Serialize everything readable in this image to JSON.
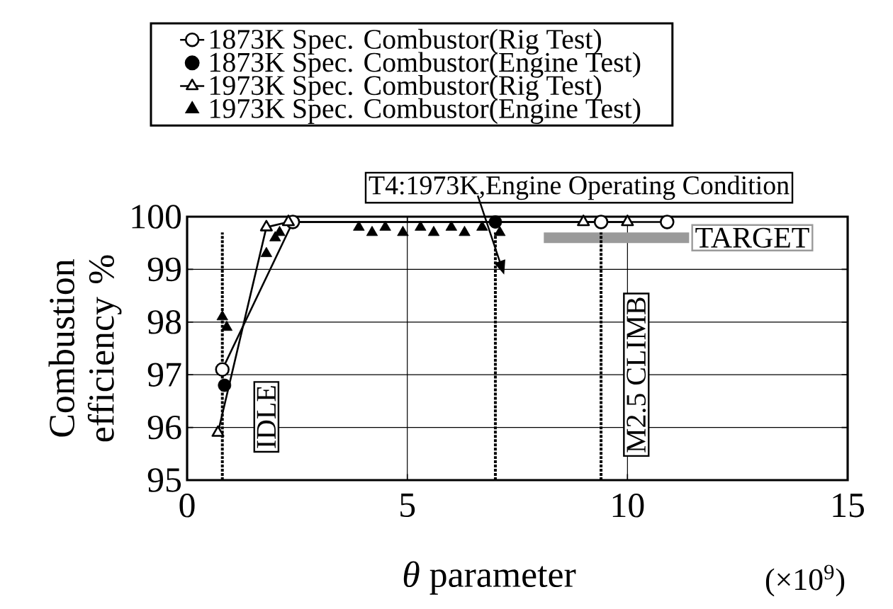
{
  "chart_data": {
    "type": "line",
    "xlabel": "*θ* parameter",
    "ylabel": "Combustion efficiency %",
    "xlim": [
      0,
      15
    ],
    "ylim": [
      95,
      100
    ],
    "xticks": [
      0,
      5,
      10,
      15
    ],
    "yticks": [
      95,
      96,
      97,
      98,
      99,
      100
    ],
    "grid": true,
    "legend": "top",
    "series": [
      {
        "name": "1873K Spec. Combustor(Rig Test)",
        "marker": "circle",
        "color": "#000000",
        "x": [
          0.8,
          2.4,
          9.4,
          10.9
        ],
        "values": [
          97.1,
          99.9,
          99.9,
          99.9
        ]
      },
      {
        "name": "1873K Spec. Combustor(Engine Test)",
        "type": "scatter",
        "marker": "circle",
        "color": "#000000",
        "x": [
          0.85,
          7.0
        ],
        "values": [
          96.8,
          99.9
        ]
      },
      {
        "name": "1973K Spec. Combustor(Rig Test)",
        "marker": "triangle",
        "color": "#000000",
        "x": [
          0.7,
          1.8,
          2.3,
          9.0,
          10.0
        ],
        "values": [
          95.9,
          99.8,
          99.9,
          99.9,
          99.9
        ]
      },
      {
        "name": "1973K Spec. Combustor(Engine Test)",
        "type": "scatter",
        "marker": "triangle",
        "color": "#000000",
        "x": [
          0.8,
          0.9,
          1.8,
          2.0,
          2.1,
          3.9,
          4.2,
          4.5,
          4.9,
          5.3,
          5.6,
          6.0,
          6.3,
          6.7,
          7.1
        ],
        "values": [
          98.1,
          97.9,
          99.3,
          99.6,
          99.7,
          99.8,
          99.7,
          99.8,
          99.7,
          99.8,
          99.7,
          99.8,
          99.7,
          99.8,
          99.7
        ]
      }
    ],
    "ref_lines": [
      {
        "axis": "x",
        "value": 0.8,
        "label": "IDLE",
        "line_style": "dotted"
      },
      {
        "axis": "x",
        "value": 7.0,
        "line_style": "dotted"
      },
      {
        "axis": "x",
        "value": 9.4,
        "label": "M2.5 CLIMB",
        "line_style": "dotted"
      }
    ],
    "bands": [
      {
        "axis": "y",
        "from": 99.5,
        "to": 99.7,
        "label": "TARGET",
        "color": "#9a9a9a"
      }
    ],
    "annotations": [
      "T4:1973K,Engine Operating Condition",
      "(×10$^{9}$)"
    ]
  }
}
